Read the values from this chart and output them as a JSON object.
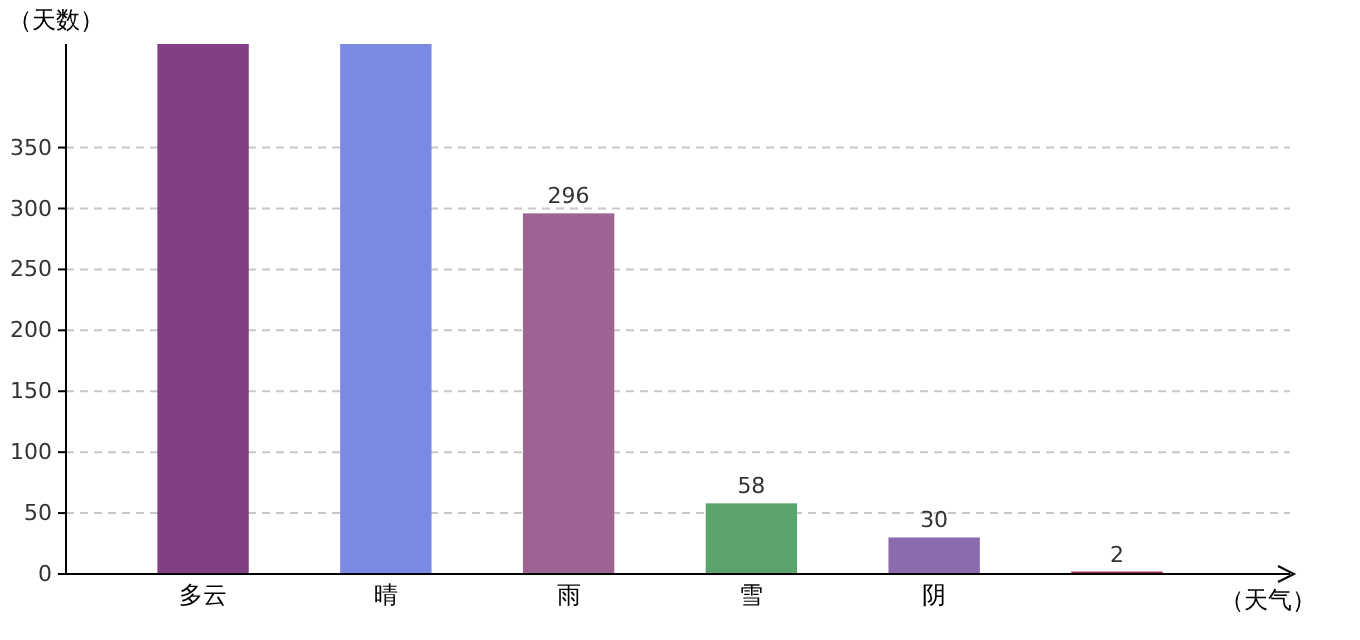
{
  "chart_data": {
    "type": "bar",
    "ylabel": "（天数）",
    "xlabel": "（天气）",
    "categories": [
      "多云",
      "晴",
      "雨",
      "雪",
      "阴",
      null
    ],
    "values": [
      435,
      435,
      296,
      58,
      30,
      2
    ],
    "colors": [
      "#833f86",
      "#7a8ae3",
      "#9d6392",
      "#5ca46e",
      "#8b6aad",
      "#9c2b4d"
    ],
    "value_labels": [
      null,
      null,
      "296",
      "58",
      "30",
      "2"
    ],
    "ylim": [
      0,
      435
    ],
    "yticks": [
      0,
      50,
      100,
      150,
      200,
      250,
      300,
      350
    ],
    "grid": "y"
  }
}
